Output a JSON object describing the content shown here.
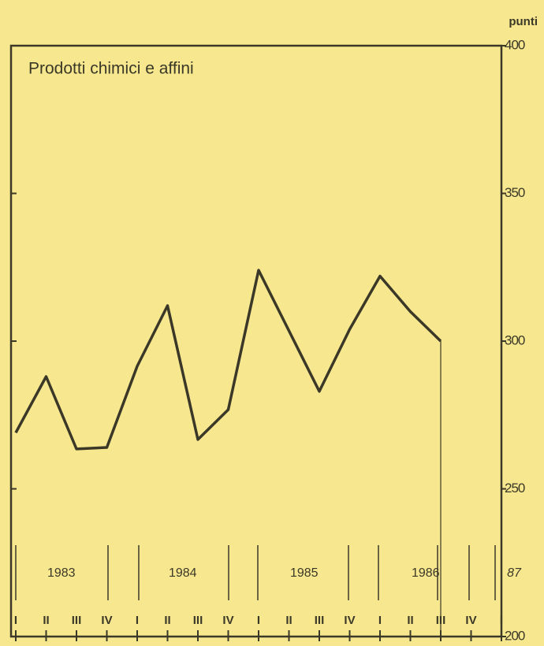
{
  "chart_data": {
    "type": "line",
    "title": "Prodotti chimici e affini",
    "y_axis_label": "punti",
    "categories": [
      "I",
      "II",
      "III",
      "IV",
      "I",
      "II",
      "III",
      "IV",
      "I",
      "II",
      "III",
      "IV",
      "I",
      "II",
      "III",
      "IV",
      "I"
    ],
    "years": [
      "1983",
      "1984",
      "1985",
      "1986",
      "87"
    ],
    "series": [
      {
        "name": "Prodotti chimici e affini",
        "color": "#3b3828",
        "values": [
          269,
          288,
          263.5,
          264,
          291.5,
          312,
          266.7,
          276.8,
          324,
          303.5,
          283,
          304,
          322,
          310,
          300,
          null,
          null
        ]
      }
    ],
    "ylim": [
      200,
      400
    ],
    "yticks": [
      200,
      250,
      300,
      350,
      400
    ],
    "grid": false
  }
}
